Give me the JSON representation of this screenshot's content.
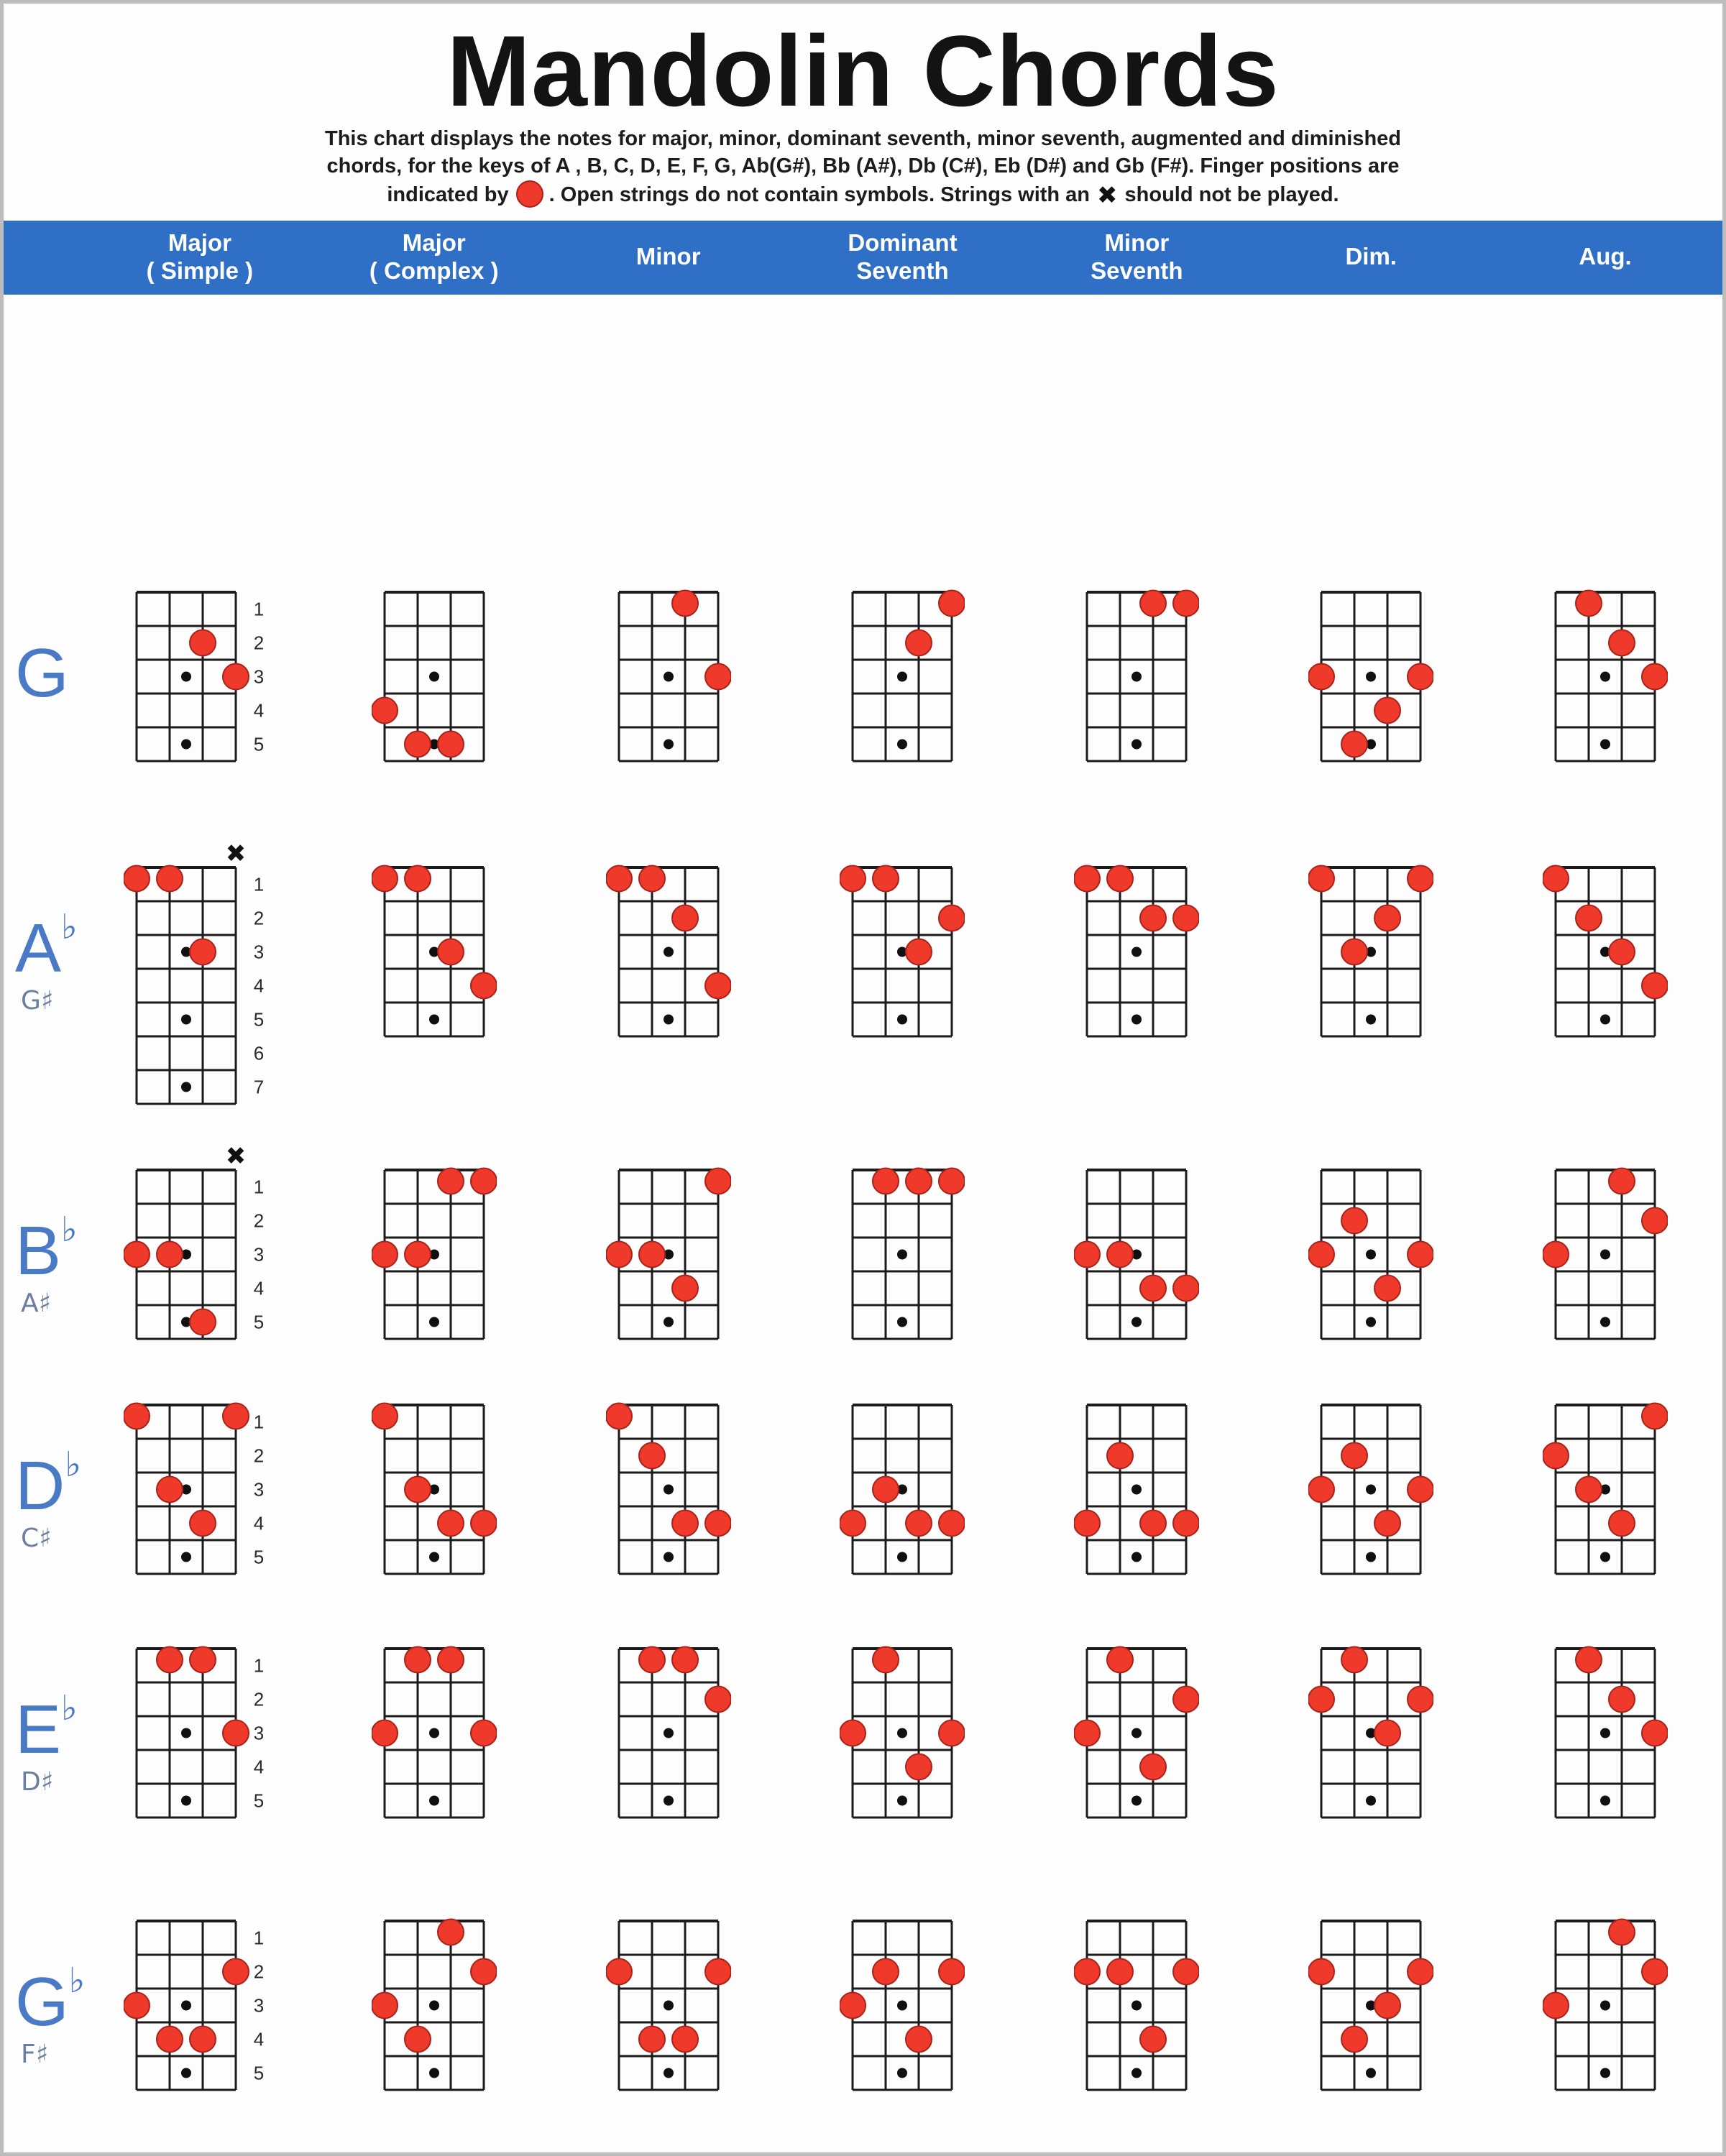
{
  "title": "Mandolin Chords",
  "description": {
    "line1": "This chart displays the notes for major, minor, dominant seventh, minor seventh, augmented and diminished",
    "line2": "chords, for the keys of A , B, C, D, E, F, G, Ab(G#), Bb (A#), Db (C#), Eb (D#) and Gb (F#). Finger positions are",
    "line3_pre": "indicated by",
    "line3_mid": ". Open strings do not contain symbols. Strings with an",
    "line3_post": "should not be played.",
    "x_symbol": "✖"
  },
  "colors": {
    "accent_blue": "#2f6fc6",
    "dot_red": "#ee392b",
    "dot_red_edge": "#a8241a",
    "label_blue": "#4a79c5",
    "grid_black": "#1b1b1b"
  },
  "columns": [
    {
      "id": "major-simple",
      "label": "Major",
      "sublabel": "( Simple )"
    },
    {
      "id": "major-complex",
      "label": "Major",
      "sublabel": "( Complex )"
    },
    {
      "id": "minor",
      "label": "Minor",
      "sublabel": ""
    },
    {
      "id": "dominant-seventh",
      "label": "Dominant",
      "sublabel": "Seventh"
    },
    {
      "id": "minor-seventh",
      "label": "Minor",
      "sublabel": "Seventh"
    },
    {
      "id": "dim",
      "label": "Dim.",
      "sublabel": ""
    },
    {
      "id": "aug",
      "label": "Aug.",
      "sublabel": ""
    }
  ],
  "rows": [
    {
      "id": "g",
      "label": "G",
      "flat": "",
      "alt": "",
      "diagrams": [
        {
          "frets": 5,
          "numbers": [
            1,
            2,
            3,
            4,
            5
          ],
          "markers": [
            3,
            5
          ],
          "x_strings": [],
          "dots": [
            [
              3,
              2
            ],
            [
              4,
              3
            ]
          ]
        },
        {
          "frets": 5,
          "markers": [
            3,
            5
          ],
          "dots": [
            [
              1,
              4
            ],
            [
              2,
              5
            ],
            [
              3,
              5
            ]
          ]
        },
        {
          "frets": 5,
          "markers": [
            3,
            5
          ],
          "dots": [
            [
              3,
              1
            ],
            [
              4,
              3
            ]
          ]
        },
        {
          "frets": 5,
          "markers": [
            3,
            5
          ],
          "dots": [
            [
              4,
              1
            ],
            [
              3,
              2
            ]
          ]
        },
        {
          "frets": 5,
          "markers": [
            3,
            5
          ],
          "dots": [
            [
              3,
              1
            ],
            [
              4,
              1
            ]
          ]
        },
        {
          "frets": 5,
          "markers": [
            3,
            5
          ],
          "dots": [
            [
              1,
              3
            ],
            [
              4,
              3
            ],
            [
              3,
              4
            ],
            [
              2,
              5
            ]
          ]
        },
        {
          "frets": 5,
          "markers": [
            3,
            5
          ],
          "dots": [
            [
              2,
              1
            ],
            [
              3,
              2
            ],
            [
              4,
              3
            ]
          ]
        }
      ]
    },
    {
      "id": "ab",
      "label": "A",
      "flat": "♭",
      "alt": "G♯",
      "diagrams": [
        {
          "frets": 7,
          "numbers": [
            1,
            2,
            3,
            4,
            5,
            6,
            7
          ],
          "markers": [
            3,
            5,
            7
          ],
          "x_strings": [
            4
          ],
          "dots": [
            [
              1,
              1
            ],
            [
              2,
              1
            ],
            [
              3,
              3
            ]
          ]
        },
        {
          "frets": 5,
          "markers": [
            3,
            5
          ],
          "dots": [
            [
              1,
              1
            ],
            [
              2,
              1
            ],
            [
              3,
              3
            ],
            [
              4,
              4
            ]
          ]
        },
        {
          "frets": 5,
          "markers": [
            3,
            5
          ],
          "dots": [
            [
              1,
              1
            ],
            [
              2,
              1
            ],
            [
              3,
              2
            ],
            [
              4,
              4
            ]
          ]
        },
        {
          "frets": 5,
          "markers": [
            3,
            5
          ],
          "dots": [
            [
              1,
              1
            ],
            [
              2,
              1
            ],
            [
              3,
              3
            ],
            [
              4,
              2
            ]
          ]
        },
        {
          "frets": 5,
          "markers": [
            3,
            5
          ],
          "dots": [
            [
              1,
              1
            ],
            [
              2,
              1
            ],
            [
              3,
              2
            ],
            [
              4,
              2
            ]
          ]
        },
        {
          "frets": 5,
          "markers": [
            3,
            5
          ],
          "dots": [
            [
              1,
              1
            ],
            [
              4,
              1
            ],
            [
              3,
              2
            ],
            [
              2,
              3
            ]
          ]
        },
        {
          "frets": 5,
          "markers": [
            3,
            5
          ],
          "dots": [
            [
              1,
              1
            ],
            [
              2,
              2
            ],
            [
              3,
              3
            ],
            [
              4,
              4
            ]
          ]
        }
      ]
    },
    {
      "id": "bb",
      "label": "B",
      "flat": "♭",
      "alt": "A♯",
      "diagrams": [
        {
          "frets": 5,
          "numbers": [
            1,
            2,
            3,
            4,
            5
          ],
          "markers": [
            3,
            5
          ],
          "x_strings": [
            4
          ],
          "dots": [
            [
              1,
              3
            ],
            [
              2,
              3
            ],
            [
              3,
              5
            ]
          ]
        },
        {
          "frets": 5,
          "markers": [
            3,
            5
          ],
          "dots": [
            [
              3,
              1
            ],
            [
              4,
              1
            ],
            [
              1,
              3
            ],
            [
              2,
              3
            ]
          ]
        },
        {
          "frets": 5,
          "markers": [
            3,
            5
          ],
          "dots": [
            [
              4,
              1
            ],
            [
              1,
              3
            ],
            [
              2,
              3
            ],
            [
              3,
              4
            ]
          ]
        },
        {
          "frets": 5,
          "markers": [
            3,
            5
          ],
          "dots": [
            [
              2,
              1
            ],
            [
              3,
              1
            ],
            [
              4,
              1
            ]
          ]
        },
        {
          "frets": 5,
          "markers": [
            3,
            5
          ],
          "dots": [
            [
              1,
              3
            ],
            [
              2,
              3
            ],
            [
              3,
              4
            ],
            [
              4,
              4
            ]
          ]
        },
        {
          "frets": 5,
          "markers": [
            3,
            5
          ],
          "dots": [
            [
              2,
              2
            ],
            [
              1,
              3
            ],
            [
              4,
              3
            ],
            [
              3,
              4
            ]
          ]
        },
        {
          "frets": 5,
          "markers": [
            3,
            5
          ],
          "dots": [
            [
              3,
              1
            ],
            [
              4,
              2
            ],
            [
              1,
              3
            ]
          ]
        }
      ]
    },
    {
      "id": "db",
      "label": "D",
      "flat": "♭",
      "alt": "C♯",
      "diagrams": [
        {
          "frets": 5,
          "numbers": [
            1,
            2,
            3,
            4,
            5
          ],
          "markers": [
            3,
            5
          ],
          "x_strings": [],
          "dots": [
            [
              1,
              1
            ],
            [
              4,
              1
            ],
            [
              2,
              3
            ],
            [
              3,
              4
            ]
          ]
        },
        {
          "frets": 5,
          "markers": [
            3,
            5
          ],
          "dots": [
            [
              1,
              1
            ],
            [
              2,
              3
            ],
            [
              3,
              4
            ],
            [
              4,
              4
            ]
          ]
        },
        {
          "frets": 5,
          "markers": [
            3,
            5
          ],
          "dots": [
            [
              1,
              1
            ],
            [
              2,
              2
            ],
            [
              3,
              4
            ],
            [
              4,
              4
            ]
          ]
        },
        {
          "frets": 5,
          "markers": [
            3,
            5
          ],
          "dots": [
            [
              2,
              3
            ],
            [
              1,
              4
            ],
            [
              3,
              4
            ],
            [
              4,
              4
            ]
          ]
        },
        {
          "frets": 5,
          "markers": [
            3,
            5
          ],
          "dots": [
            [
              2,
              2
            ],
            [
              1,
              4
            ],
            [
              3,
              4
            ],
            [
              4,
              4
            ]
          ]
        },
        {
          "frets": 5,
          "markers": [
            3,
            5
          ],
          "dots": [
            [
              2,
              2
            ],
            [
              1,
              3
            ],
            [
              4,
              3
            ],
            [
              3,
              4
            ]
          ]
        },
        {
          "frets": 5,
          "markers": [
            3,
            5
          ],
          "dots": [
            [
              4,
              1
            ],
            [
              1,
              2
            ],
            [
              2,
              3
            ],
            [
              3,
              4
            ]
          ]
        }
      ]
    },
    {
      "id": "eb",
      "label": "E",
      "flat": "♭",
      "alt": "D♯",
      "diagrams": [
        {
          "frets": 5,
          "numbers": [
            1,
            2,
            3,
            4,
            5
          ],
          "markers": [
            3,
            5
          ],
          "x_strings": [],
          "dots": [
            [
              2,
              1
            ],
            [
              3,
              1
            ],
            [
              4,
              3
            ]
          ]
        },
        {
          "frets": 5,
          "markers": [
            3,
            5
          ],
          "dots": [
            [
              2,
              1
            ],
            [
              3,
              1
            ],
            [
              1,
              3
            ],
            [
              4,
              3
            ]
          ]
        },
        {
          "frets": 5,
          "markers": [
            3,
            5
          ],
          "dots": [
            [
              2,
              1
            ],
            [
              3,
              1
            ],
            [
              4,
              2
            ]
          ]
        },
        {
          "frets": 5,
          "markers": [
            3,
            5
          ],
          "dots": [
            [
              2,
              1
            ],
            [
              1,
              3
            ],
            [
              4,
              3
            ],
            [
              3,
              4
            ]
          ]
        },
        {
          "frets": 5,
          "markers": [
            3,
            5
          ],
          "dots": [
            [
              2,
              1
            ],
            [
              4,
              2
            ],
            [
              1,
              3
            ],
            [
              3,
              4
            ]
          ]
        },
        {
          "frets": 5,
          "markers": [
            3,
            5
          ],
          "dots": [
            [
              2,
              1
            ],
            [
              1,
              2
            ],
            [
              4,
              2
            ],
            [
              3,
              3
            ]
          ]
        },
        {
          "frets": 5,
          "markers": [
            3,
            5
          ],
          "dots": [
            [
              2,
              1
            ],
            [
              3,
              2
            ],
            [
              4,
              3
            ]
          ]
        }
      ]
    },
    {
      "id": "gb",
      "label": "G",
      "flat": "♭",
      "alt": "F♯",
      "diagrams": [
        {
          "frets": 5,
          "numbers": [
            1,
            2,
            3,
            4,
            5
          ],
          "markers": [
            3,
            5
          ],
          "x_strings": [],
          "dots": [
            [
              4,
              2
            ],
            [
              1,
              3
            ],
            [
              2,
              4
            ],
            [
              3,
              4
            ]
          ]
        },
        {
          "frets": 5,
          "markers": [
            3,
            5
          ],
          "dots": [
            [
              3,
              1
            ],
            [
              4,
              2
            ],
            [
              1,
              3
            ],
            [
              2,
              4
            ]
          ]
        },
        {
          "frets": 5,
          "markers": [
            3,
            5
          ],
          "dots": [
            [
              1,
              2
            ],
            [
              4,
              2
            ],
            [
              2,
              4
            ],
            [
              3,
              4
            ]
          ]
        },
        {
          "frets": 5,
          "markers": [
            3,
            5
          ],
          "dots": [
            [
              2,
              2
            ],
            [
              4,
              2
            ],
            [
              1,
              3
            ],
            [
              3,
              4
            ]
          ]
        },
        {
          "frets": 5,
          "markers": [
            3,
            5
          ],
          "dots": [
            [
              1,
              2
            ],
            [
              2,
              2
            ],
            [
              4,
              2
            ],
            [
              3,
              4
            ]
          ]
        },
        {
          "frets": 5,
          "markers": [
            3,
            5
          ],
          "dots": [
            [
              1,
              2
            ],
            [
              4,
              2
            ],
            [
              3,
              3
            ],
            [
              2,
              4
            ]
          ]
        },
        {
          "frets": 5,
          "markers": [
            3,
            5
          ],
          "dots": [
            [
              3,
              1
            ],
            [
              4,
              2
            ],
            [
              1,
              3
            ]
          ]
        }
      ]
    }
  ]
}
